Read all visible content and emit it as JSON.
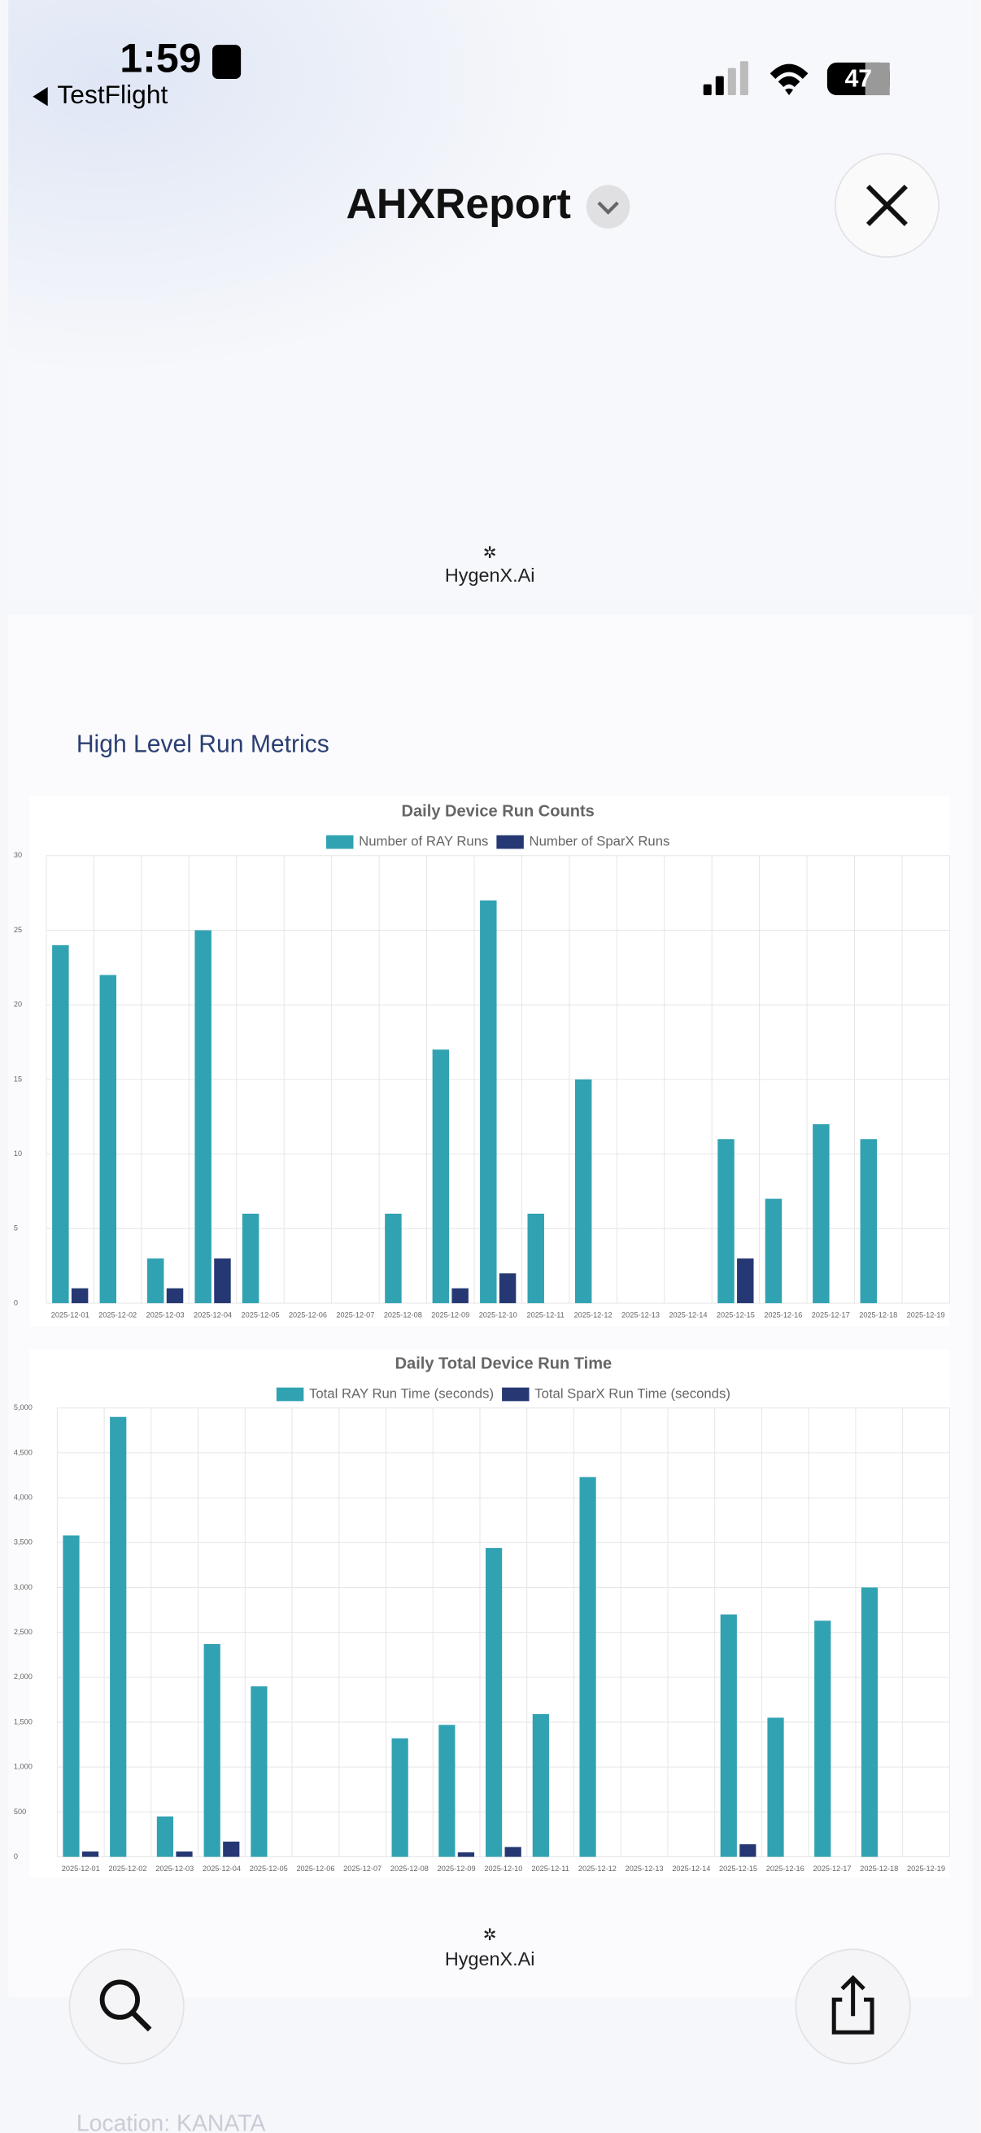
{
  "status_bar": {
    "time": "1:59",
    "back": "TestFlight",
    "battery": "47"
  },
  "header": {
    "title": "AHXReport"
  },
  "logos": [
    "HygenX.Ai",
    "HygenX.Ai"
  ],
  "section_title": "High Level Run Metrics",
  "footer_text": "Location: KANATA",
  "chart_data": [
    {
      "type": "bar",
      "title": "Daily Device Run Counts",
      "categories": [
        "2025-12-01",
        "2025-12-02",
        "2025-12-03",
        "2025-12-04",
        "2025-12-05",
        "2025-12-06",
        "2025-12-07",
        "2025-12-08",
        "2025-12-09",
        "2025-12-10",
        "2025-12-11",
        "2025-12-12",
        "2025-12-13",
        "2025-12-14",
        "2025-12-15",
        "2025-12-16",
        "2025-12-17",
        "2025-12-18",
        "2025-12-19"
      ],
      "series": [
        {
          "name": "Number of RAY Runs",
          "color": "#31a2b2",
          "values": [
            24,
            22,
            3,
            25,
            6,
            0,
            0,
            6,
            17,
            27,
            6,
            15,
            0,
            0,
            11,
            7,
            12,
            11,
            0
          ]
        },
        {
          "name": "Number of SparX Runs",
          "color": "#263873",
          "values": [
            1,
            0,
            1,
            3,
            0,
            0,
            0,
            0,
            1,
            2,
            0,
            0,
            0,
            0,
            3,
            0,
            0,
            0,
            0
          ]
        }
      ],
      "ylim": [
        0,
        30
      ],
      "yticks": [
        0,
        5,
        10,
        15,
        20,
        25,
        30
      ],
      "grid": true,
      "legend": "top"
    },
    {
      "type": "bar",
      "title": "Daily Total Device Run Time",
      "categories": [
        "2025-12-01",
        "2025-12-02",
        "2025-12-03",
        "2025-12-04",
        "2025-12-05",
        "2025-12-06",
        "2025-12-07",
        "2025-12-08",
        "2025-12-09",
        "2025-12-10",
        "2025-12-11",
        "2025-12-12",
        "2025-12-13",
        "2025-12-14",
        "2025-12-15",
        "2025-12-16",
        "2025-12-17",
        "2025-12-18",
        "2025-12-19"
      ],
      "series": [
        {
          "name": "Total RAY Run Time (seconds)",
          "color": "#31a2b2",
          "values": [
            3580,
            4900,
            450,
            2370,
            1900,
            0,
            0,
            1320,
            1470,
            3440,
            1590,
            4230,
            0,
            0,
            2700,
            1550,
            2630,
            3000,
            0
          ]
        },
        {
          "name": "Total SparX Run Time (seconds)",
          "color": "#263873",
          "values": [
            60,
            0,
            60,
            170,
            0,
            0,
            0,
            0,
            50,
            110,
            0,
            0,
            0,
            0,
            140,
            0,
            0,
            0,
            0
          ]
        }
      ],
      "ylim": [
        0,
        5000
      ],
      "yticks": [
        0,
        500,
        {
          "value": 1000,
          "label": "1,000"
        },
        {
          "value": 1500,
          "label": "1,500"
        },
        {
          "value": 2000,
          "label": "2,000"
        },
        {
          "value": 2500,
          "label": "2,500"
        },
        {
          "value": 3000,
          "label": "3,000"
        },
        {
          "value": 3500,
          "label": "3,500"
        },
        {
          "value": 4000,
          "label": "4,000"
        },
        {
          "value": 4500,
          "label": "4,500"
        },
        {
          "value": 5000,
          "label": "5,000"
        }
      ],
      "grid": true,
      "legend": "top"
    }
  ]
}
